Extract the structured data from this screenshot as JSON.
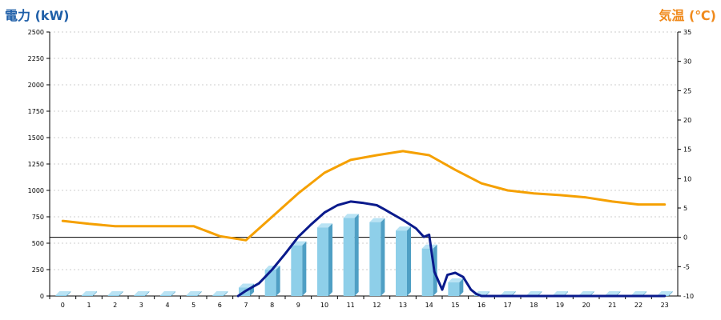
{
  "chart_data": {
    "type": "bar",
    "left_axis_title": "電力 (kW)",
    "right_axis_title": "気温 (℃)",
    "categories": [
      "0",
      "1",
      "2",
      "3",
      "4",
      "5",
      "6",
      "7",
      "8",
      "9",
      "10",
      "11",
      "12",
      "13",
      "14",
      "15",
      "16",
      "17",
      "18",
      "19",
      "20",
      "21",
      "22",
      "23"
    ],
    "y_left_ticks": [
      "0",
      "250",
      "500",
      "750",
      "1000",
      "1250",
      "1500",
      "1750",
      "2000",
      "2250",
      "2500"
    ],
    "y_right_ticks": [
      "-10",
      "-5",
      "0",
      "5",
      "10",
      "15",
      "20",
      "25",
      "30",
      "35"
    ],
    "ylim_left": [
      0,
      2500
    ],
    "ylim_right": [
      -10,
      35
    ],
    "grid": true,
    "colors": {
      "bar": "#8ecfe9",
      "bar_side": "#4f9fc4",
      "bar_top": "#b9e3f4",
      "power_line": "#0a1a8c",
      "temp_line": "#f5a000",
      "left_title": "#1f5fa8",
      "right_title": "#f08a1c"
    },
    "series": [
      {
        "type": "bar",
        "axis": "left",
        "values": [
          0,
          0,
          0,
          0,
          0,
          0,
          0,
          80,
          250,
          480,
          650,
          740,
          700,
          620,
          450,
          130,
          0,
          0,
          0,
          0,
          0,
          0,
          0,
          0
        ]
      },
      {
        "type": "line",
        "axis": "left",
        "x": [
          6.7,
          7,
          7.5,
          8,
          8.5,
          9,
          9.5,
          10,
          10.5,
          11,
          11.5,
          12,
          12.3,
          12.5,
          13,
          13.5,
          13.8,
          14,
          14.2,
          14.5,
          14.7,
          15,
          15.3,
          15.6,
          15.8,
          16,
          17,
          18,
          19,
          20,
          21,
          22,
          23
        ],
        "values": [
          0,
          50,
          120,
          250,
          400,
          560,
          680,
          790,
          860,
          895,
          880,
          860,
          820,
          790,
          720,
          640,
          560,
          580,
          230,
          60,
          200,
          220,
          180,
          60,
          20,
          0,
          0,
          0,
          0,
          0,
          0,
          0,
          0
        ]
      },
      {
        "type": "line",
        "axis": "right",
        "x": [
          0,
          1,
          2,
          3,
          4,
          5,
          6,
          7,
          8,
          9,
          10,
          11,
          12,
          13,
          14,
          15,
          16,
          17,
          18,
          19,
          20,
          21,
          22,
          23
        ],
        "values": [
          2.8,
          2.3,
          1.9,
          1.9,
          1.9,
          1.9,
          0.2,
          -0.5,
          3.5,
          7.5,
          11,
          13.2,
          14,
          14.7,
          14,
          11.5,
          9.2,
          8,
          7.5,
          7.2,
          6.8,
          6.1,
          5.6,
          5.6
        ]
      }
    ]
  }
}
